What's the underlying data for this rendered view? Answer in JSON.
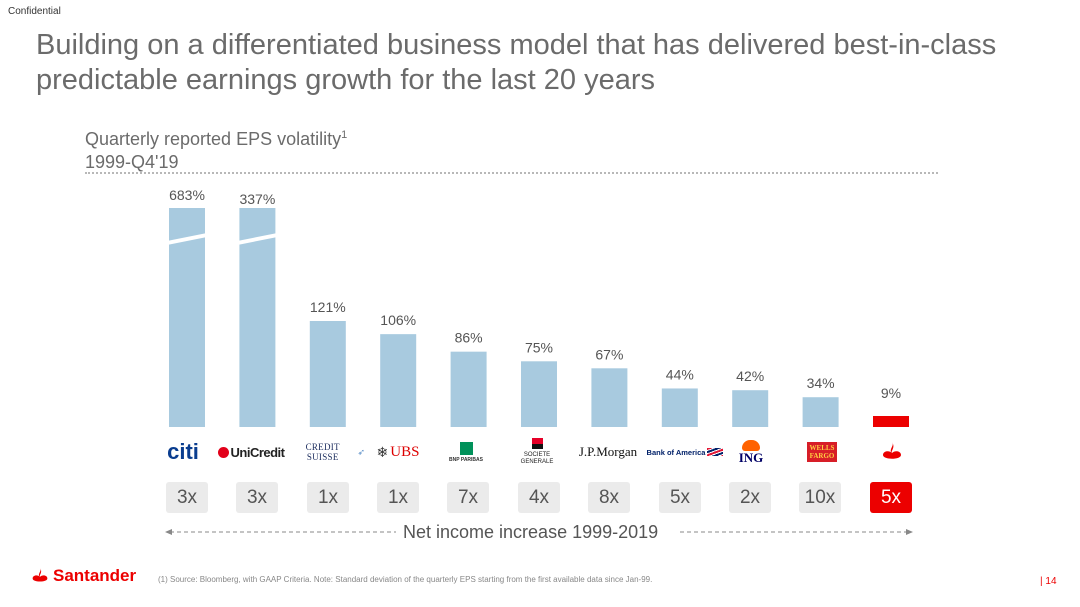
{
  "header": {
    "confidential": "Confidential",
    "title": "Building on a differentiated business model that has delivered best-in-class predictable earnings growth for the last 20 years"
  },
  "chart_data": {
    "type": "bar",
    "title": "Quarterly reported EPS volatility",
    "title_footnote_marker": "1",
    "subtitle": "1999-Q4'19",
    "categories": [
      "Citi",
      "UniCredit",
      "Credit Suisse",
      "UBS",
      "BNP Paribas",
      "Societe Generale",
      "J.P.Morgan",
      "Bank of America",
      "ING",
      "Wells Fargo",
      "Santander"
    ],
    "values": [
      683,
      337,
      121,
      106,
      86,
      75,
      67,
      44,
      42,
      34,
      9
    ],
    "value_labels": [
      "683%",
      "337%",
      "121%",
      "106%",
      "86%",
      "75%",
      "67%",
      "44%",
      "42%",
      "34%",
      "9%"
    ],
    "axis_break_above": 121,
    "net_income_multiples": [
      "3x",
      "3x",
      "1x",
      "1x",
      "7x",
      "4x",
      "8x",
      "5x",
      "2x",
      "10x",
      "5x"
    ],
    "net_income_label": "Net income increase 1999-2019",
    "highlight_index": 10,
    "colors": {
      "bar": "#a8cadf",
      "highlight": "#ec0000"
    }
  },
  "logos": {
    "citi": "citi",
    "unicredit": "UniCredit",
    "credit_suisse": "CREDIT SUISSE",
    "ubs": "UBS",
    "bnp_paribas": "BNP PARIBAS",
    "societe_generale_1": "SOCIETE",
    "societe_generale_2": "GENERALE",
    "jpmorgan": "J.P.Morgan",
    "bank_of_america": "Bank of America",
    "ing": "ING",
    "wells_fargo_1": "WELLS",
    "wells_fargo_2": "FARGO"
  },
  "footer": {
    "brand": "Santander",
    "footnote": "(1)  Source: Bloomberg, with GAAP Criteria.  Note: Standard deviation of the quarterly EPS starting from the first available data since Jan-99.",
    "page_number": "| 14"
  }
}
